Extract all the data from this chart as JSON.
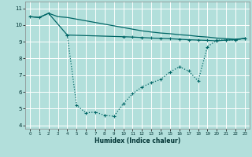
{
  "xlabel": "Humidex (Indice chaleur)",
  "bg_color": "#b2dfdb",
  "grid_color": "#ffffff",
  "line_color": "#006666",
  "x_ticks": [
    0,
    1,
    2,
    3,
    4,
    5,
    6,
    7,
    8,
    9,
    10,
    11,
    12,
    13,
    14,
    15,
    16,
    17,
    18,
    19,
    20,
    21,
    22,
    23
  ],
  "y_ticks": [
    4,
    5,
    6,
    7,
    8,
    9,
    10,
    11
  ],
  "xlim": [
    -0.5,
    23.5
  ],
  "ylim": [
    3.8,
    11.4
  ],
  "line1_x": [
    0,
    1,
    2,
    3,
    4,
    5,
    6,
    7,
    8,
    9,
    10,
    11,
    12,
    13,
    14,
    15,
    16,
    17,
    18,
    19,
    20,
    21,
    22,
    23
  ],
  "line1_y": [
    10.5,
    10.45,
    10.7,
    10.5,
    10.45,
    10.35,
    10.25,
    10.15,
    10.05,
    9.95,
    9.85,
    9.75,
    9.65,
    9.58,
    9.52,
    9.48,
    9.42,
    9.38,
    9.32,
    9.28,
    9.22,
    9.18,
    9.15,
    9.2
  ],
  "line2_x": [
    0,
    1,
    2,
    4,
    10,
    11,
    12,
    13,
    14,
    15,
    16,
    17,
    18,
    19,
    20,
    21,
    22,
    23
  ],
  "line2_y": [
    10.5,
    10.45,
    10.7,
    9.4,
    9.3,
    9.28,
    9.25,
    9.22,
    9.2,
    9.18,
    9.15,
    9.12,
    9.1,
    9.08,
    9.05,
    9.1,
    9.12,
    9.2
  ],
  "line3_x": [
    4,
    5,
    6,
    7,
    8,
    9,
    10,
    11,
    12,
    13,
    14,
    15,
    16,
    17,
    18,
    19,
    20,
    21,
    22,
    23
  ],
  "line3_y": [
    9.4,
    5.2,
    4.75,
    4.8,
    4.6,
    4.55,
    5.3,
    5.9,
    6.3,
    6.55,
    6.75,
    7.2,
    7.5,
    7.25,
    6.65,
    8.7,
    9.1,
    9.1,
    9.1,
    9.2
  ]
}
